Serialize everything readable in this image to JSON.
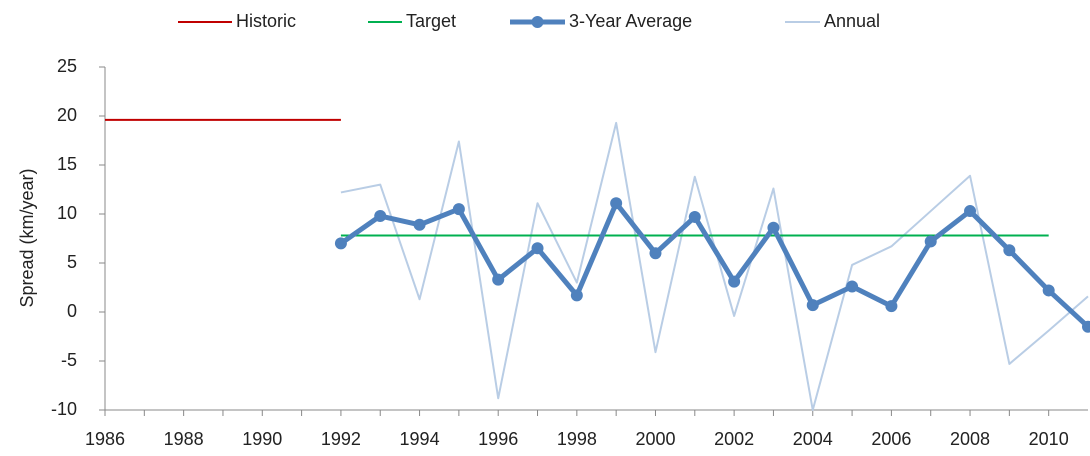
{
  "chart_data": {
    "type": "line",
    "y_label": "Spread (km/year)",
    "xlim": [
      1986,
      2011
    ],
    "xticks": [
      1986,
      1988,
      1990,
      1992,
      1994,
      1996,
      1998,
      2000,
      2002,
      2004,
      2006,
      2008,
      2010
    ],
    "ylim": [
      -10,
      25
    ],
    "yticks": [
      -10,
      -5,
      0,
      5,
      10,
      15,
      20,
      25
    ],
    "grid": false,
    "legend": "top",
    "series": [
      {
        "name": "Historic",
        "color": "#c00000",
        "markers": false,
        "x": [
          1986,
          1992
        ],
        "values": [
          19.6,
          19.6
        ]
      },
      {
        "name": "Target",
        "color": "#00b050",
        "markers": false,
        "x": [
          1992,
          2010
        ],
        "values": [
          7.8,
          7.8
        ]
      },
      {
        "name": "3-Year Average",
        "color": "#4f81bd",
        "markers": true,
        "x": [
          1992,
          1993,
          1994,
          1995,
          1996,
          1997,
          1998,
          1999,
          2000,
          2001,
          2002,
          2003,
          2004,
          2005,
          2006,
          2007,
          2008,
          2009,
          2010,
          2011
        ],
        "values": [
          7.0,
          9.8,
          8.9,
          10.5,
          3.3,
          6.5,
          1.7,
          11.1,
          6.0,
          9.7,
          3.1,
          8.6,
          0.7,
          2.6,
          0.6,
          7.2,
          10.3,
          6.3,
          2.2,
          -1.5
        ]
      },
      {
        "name": "Annual",
        "color": "#b9cde5",
        "markers": false,
        "x": [
          1992,
          1993,
          1994,
          1995,
          1996,
          1997,
          1998,
          1999,
          2000,
          2001,
          2002,
          2003,
          2004,
          2005,
          2006,
          2007,
          2008,
          2009,
          2010,
          2011
        ],
        "values": [
          12.2,
          13.0,
          1.3,
          17.4,
          -8.8,
          11.1,
          3.0,
          19.3,
          -4.1,
          13.8,
          -0.4,
          12.6,
          -10,
          4.8,
          6.7,
          10.3,
          13.9,
          -5.3,
          -1.9,
          1.6
        ]
      }
    ]
  }
}
